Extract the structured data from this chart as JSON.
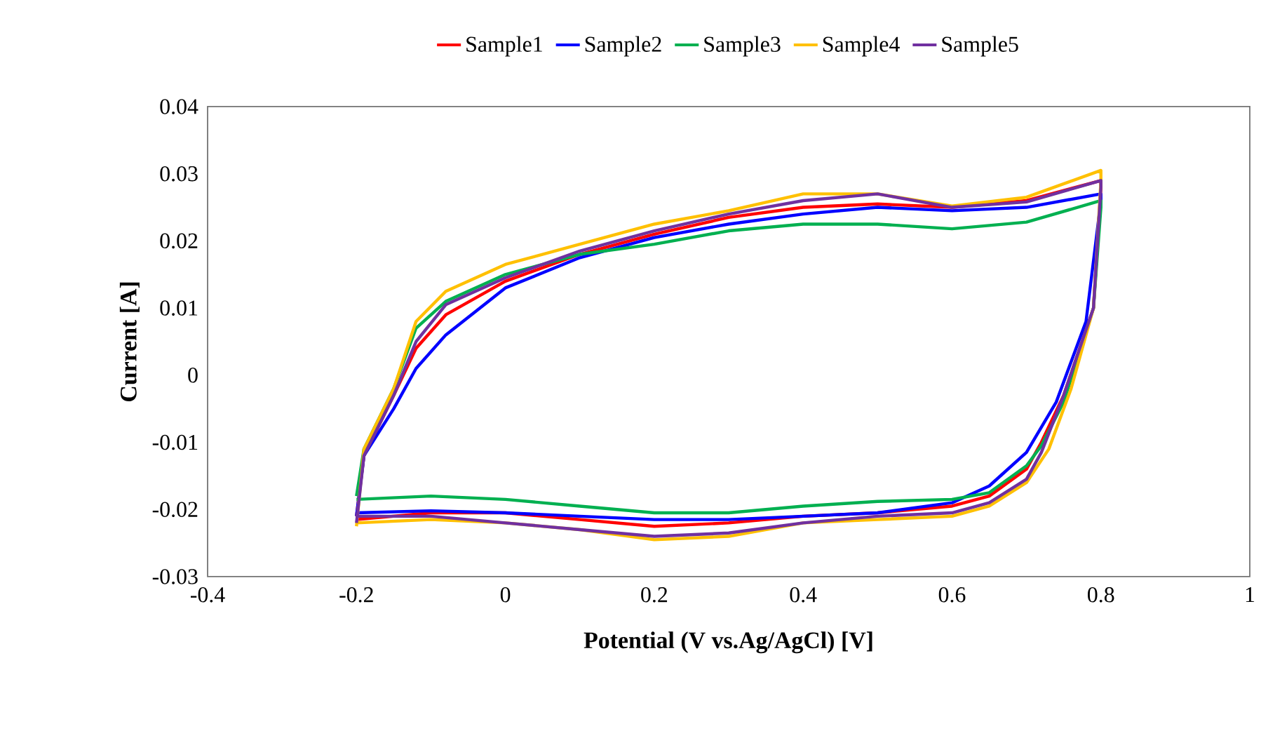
{
  "chart_data": {
    "type": "line",
    "xlabel": "Potential (V vs.Ag/AgCl) [V]",
    "ylabel": "Current [A]",
    "xlim": [
      -0.4,
      1
    ],
    "xticks": [
      -0.4,
      -0.2,
      0,
      0.2,
      0.4,
      0.6,
      0.8,
      1
    ],
    "ylim": [
      -0.03,
      0.04
    ],
    "yticks": [
      -0.03,
      -0.02,
      -0.01,
      0,
      0.01,
      0.02,
      0.03,
      0.04
    ],
    "legend": "top",
    "grid": false,
    "series": [
      {
        "name": "Sample1",
        "color": "#ff0000",
        "x": [
          -0.2,
          -0.19,
          -0.15,
          -0.12,
          -0.08,
          0,
          0.1,
          0.2,
          0.3,
          0.4,
          0.5,
          0.6,
          0.7,
          0.8,
          0.8,
          0.79,
          0.75,
          0.72,
          0.7,
          0.65,
          0.6,
          0.5,
          0.4,
          0.3,
          0.2,
          0.1,
          0,
          -0.1,
          -0.2
        ],
        "values": [
          -0.021,
          -0.012,
          -0.003,
          0.004,
          0.009,
          0.014,
          0.018,
          0.021,
          0.0235,
          0.025,
          0.0255,
          0.025,
          0.026,
          0.029,
          0.028,
          0.01,
          -0.003,
          -0.01,
          -0.014,
          -0.018,
          -0.0195,
          -0.0205,
          -0.021,
          -0.022,
          -0.0225,
          -0.0215,
          -0.0205,
          -0.0205,
          -0.0215
        ]
      },
      {
        "name": "Sample2",
        "color": "#0000ff",
        "x": [
          -0.2,
          -0.19,
          -0.15,
          -0.12,
          -0.08,
          0,
          0.1,
          0.2,
          0.3,
          0.4,
          0.5,
          0.6,
          0.7,
          0.8,
          0.8,
          0.78,
          0.74,
          0.7,
          0.65,
          0.6,
          0.5,
          0.4,
          0.3,
          0.2,
          0.1,
          0,
          -0.1,
          -0.2
        ],
        "values": [
          -0.021,
          -0.012,
          -0.005,
          0.001,
          0.006,
          0.013,
          0.0175,
          0.0205,
          0.0225,
          0.024,
          0.025,
          0.0245,
          0.025,
          0.027,
          0.026,
          0.008,
          -0.004,
          -0.0115,
          -0.0165,
          -0.019,
          -0.0205,
          -0.021,
          -0.0215,
          -0.0215,
          -0.021,
          -0.0205,
          -0.0202,
          -0.0205
        ]
      },
      {
        "name": "Sample3",
        "color": "#00b050",
        "x": [
          -0.2,
          -0.19,
          -0.15,
          -0.12,
          -0.08,
          0,
          0.1,
          0.2,
          0.3,
          0.4,
          0.5,
          0.6,
          0.7,
          0.8,
          0.8,
          0.79,
          0.75,
          0.72,
          0.7,
          0.65,
          0.6,
          0.5,
          0.4,
          0.3,
          0.2,
          0.1,
          0,
          -0.1,
          -0.2
        ],
        "values": [
          -0.018,
          -0.011,
          -0.002,
          0.007,
          0.011,
          0.015,
          0.018,
          0.0195,
          0.0215,
          0.0225,
          0.0225,
          0.0218,
          0.0228,
          0.026,
          0.025,
          0.01,
          -0.004,
          -0.0105,
          -0.0135,
          -0.0175,
          -0.0185,
          -0.0188,
          -0.0195,
          -0.0205,
          -0.0205,
          -0.0195,
          -0.0185,
          -0.018,
          -0.0185
        ]
      },
      {
        "name": "Sample4",
        "color": "#ffc000",
        "x": [
          -0.2,
          -0.19,
          -0.15,
          -0.12,
          -0.08,
          0,
          0.1,
          0.2,
          0.3,
          0.4,
          0.5,
          0.6,
          0.7,
          0.8,
          0.8,
          0.79,
          0.76,
          0.73,
          0.7,
          0.65,
          0.6,
          0.5,
          0.4,
          0.3,
          0.2,
          0.1,
          0,
          -0.1,
          -0.2
        ],
        "values": [
          -0.0225,
          -0.011,
          -0.002,
          0.008,
          0.0125,
          0.0165,
          0.0195,
          0.0225,
          0.0245,
          0.027,
          0.027,
          0.0252,
          0.0265,
          0.0305,
          0.029,
          0.01,
          -0.002,
          -0.011,
          -0.016,
          -0.0195,
          -0.021,
          -0.0215,
          -0.022,
          -0.024,
          -0.0245,
          -0.023,
          -0.022,
          -0.0215,
          -0.022
        ]
      },
      {
        "name": "Sample5",
        "color": "#7030a0",
        "x": [
          -0.2,
          -0.19,
          -0.15,
          -0.12,
          -0.08,
          0,
          0.1,
          0.2,
          0.3,
          0.4,
          0.5,
          0.6,
          0.7,
          0.8,
          0.8,
          0.79,
          0.75,
          0.72,
          0.7,
          0.65,
          0.6,
          0.5,
          0.4,
          0.3,
          0.2,
          0.1,
          0,
          -0.1,
          -0.2
        ],
        "values": [
          -0.022,
          -0.012,
          -0.003,
          0.005,
          0.0105,
          0.0145,
          0.0185,
          0.0215,
          0.024,
          0.026,
          0.027,
          0.025,
          0.0258,
          0.029,
          0.028,
          0.01,
          -0.003,
          -0.0115,
          -0.0155,
          -0.019,
          -0.0205,
          -0.021,
          -0.022,
          -0.0235,
          -0.024,
          -0.023,
          -0.022,
          -0.021,
          -0.021
        ]
      }
    ]
  }
}
